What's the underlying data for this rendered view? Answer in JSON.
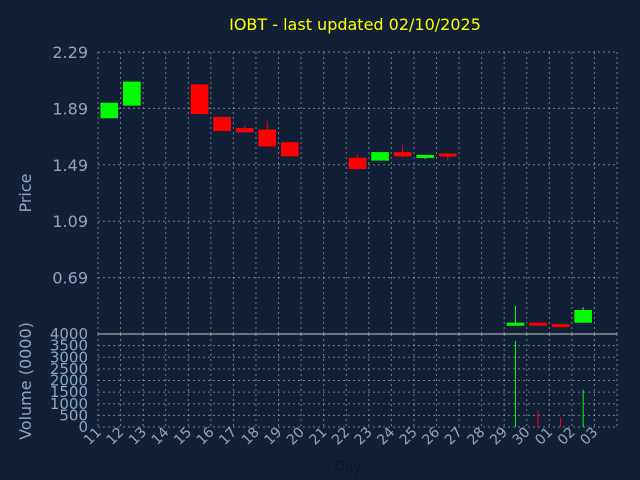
{
  "chart_data": {
    "type": "candlestick",
    "title": "IOBT - last updated 02/10/2025",
    "xlabel": "Day",
    "price_ylabel": "Price",
    "volume_ylabel": "Volume (0000)",
    "price_ticks": [
      "2.29",
      "1.89",
      "1.49",
      "1.09",
      "0.69"
    ],
    "price_ylim": [
      0.29,
      2.29
    ],
    "volume_ticks": [
      "4000",
      "3500",
      "3000",
      "2500",
      "2000",
      "1500",
      "1000",
      "500",
      "0"
    ],
    "volume_ylim": [
      0,
      4000
    ],
    "x_labels": [
      "11",
      "12",
      "13",
      "14",
      "15",
      "16",
      "17",
      "18",
      "19",
      "20",
      "21",
      "22",
      "23",
      "24",
      "25",
      "26",
      "27",
      "28",
      "29",
      "30",
      "01",
      "02",
      "03"
    ],
    "up_color": "#00ff00",
    "down_color": "#ff0000",
    "candles": [
      {
        "i": 0,
        "open": 1.82,
        "high": 1.93,
        "low": 1.82,
        "close": 1.93,
        "volume": 20
      },
      {
        "i": 1,
        "open": 1.91,
        "high": 2.08,
        "low": 1.91,
        "close": 2.08,
        "volume": 20
      },
      {
        "i": 4,
        "open": 2.06,
        "high": 2.06,
        "low": 1.85,
        "close": 1.85,
        "volume": 20
      },
      {
        "i": 5,
        "open": 1.83,
        "high": 1.83,
        "low": 1.73,
        "close": 1.73,
        "volume": 30
      },
      {
        "i": 6,
        "open": 1.75,
        "high": 1.77,
        "low": 1.72,
        "close": 1.72,
        "volume": 30
      },
      {
        "i": 7,
        "open": 1.74,
        "high": 1.8,
        "low": 1.62,
        "close": 1.62,
        "volume": 40
      },
      {
        "i": 8,
        "open": 1.65,
        "high": 1.65,
        "low": 1.55,
        "close": 1.55,
        "volume": 40
      },
      {
        "i": 11,
        "open": 1.54,
        "high": 1.56,
        "low": 1.46,
        "close": 1.46,
        "volume": 20
      },
      {
        "i": 12,
        "open": 1.52,
        "high": 1.58,
        "low": 1.52,
        "close": 1.58,
        "volume": 60
      },
      {
        "i": 13,
        "open": 1.58,
        "high": 1.63,
        "low": 1.54,
        "close": 1.55,
        "volume": 30
      },
      {
        "i": 14,
        "open": 1.54,
        "high": 1.56,
        "low": 1.53,
        "close": 1.56,
        "volume": 20
      },
      {
        "i": 15,
        "open": 1.57,
        "high": 1.57,
        "low": 1.52,
        "close": 1.55,
        "volume": 20
      },
      {
        "i": 18,
        "open": 0.36,
        "high": 0.49,
        "low": 0.35,
        "close": 0.37,
        "volume": 3700
      },
      {
        "i": 19,
        "open": 0.37,
        "high": 0.37,
        "low": 0.35,
        "close": 0.35,
        "volume": 700
      },
      {
        "i": 20,
        "open": 0.36,
        "high": 0.36,
        "low": 0.35,
        "close": 0.35,
        "volume": 400
      },
      {
        "i": 21,
        "open": 0.37,
        "high": 0.48,
        "low": 0.37,
        "close": 0.46,
        "volume": 1600
      }
    ]
  }
}
